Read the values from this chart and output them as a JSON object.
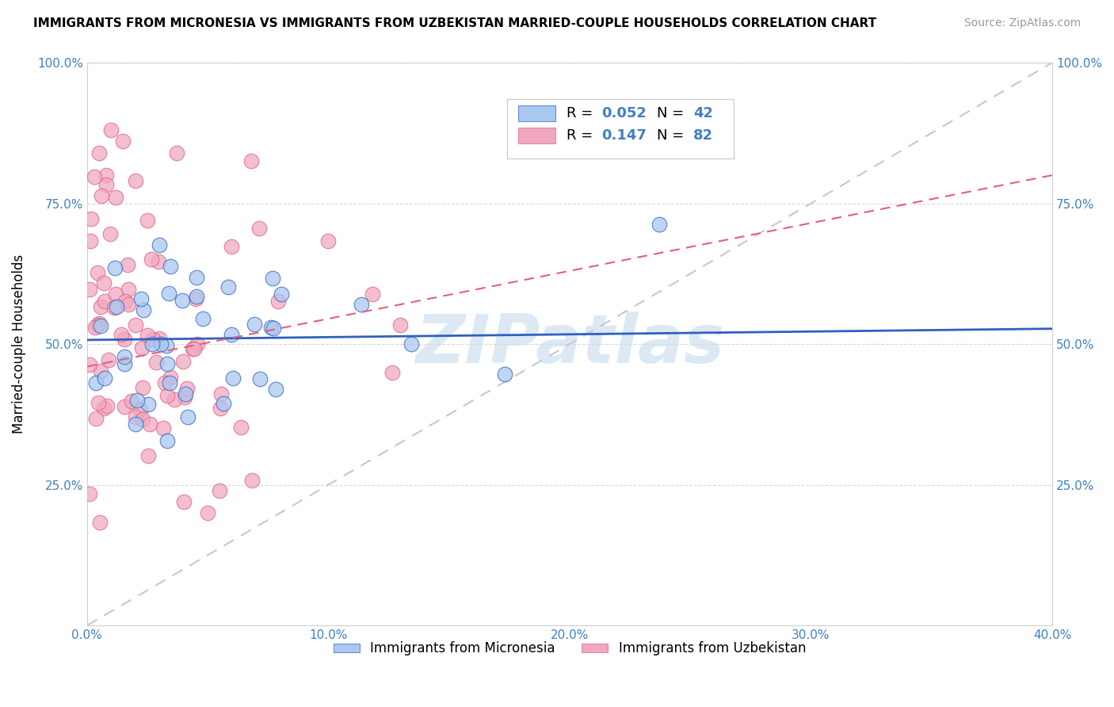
{
  "title": "IMMIGRANTS FROM MICRONESIA VS IMMIGRANTS FROM UZBEKISTAN MARRIED-COUPLE HOUSEHOLDS CORRELATION CHART",
  "source": "Source: ZipAtlas.com",
  "ylabel": "Married-couple Households",
  "xlim": [
    0.0,
    0.4
  ],
  "ylim": [
    0.0,
    1.0
  ],
  "xtick_labels": [
    "0.0%",
    "",
    "10.0%",
    "",
    "20.0%",
    "",
    "30.0%",
    "",
    "40.0%"
  ],
  "xtick_values": [
    0.0,
    0.05,
    0.1,
    0.15,
    0.2,
    0.25,
    0.3,
    0.35,
    0.4
  ],
  "ytick_labels": [
    "25.0%",
    "50.0%",
    "75.0%",
    "100.0%"
  ],
  "ytick_values": [
    0.25,
    0.5,
    0.75,
    1.0
  ],
  "color_micronesia": "#a8c8f0",
  "color_uzbekistan": "#f0a8c0",
  "color_micronesia_line": "#3060c0",
  "color_uzbekistan_line": "#e06080",
  "color_diagonal": "#c8c8c8",
  "R_micronesia": 0.052,
  "N_micronesia": 42,
  "R_uzbekistan": 0.147,
  "N_uzbekistan": 82,
  "legend_label_micronesia": "Immigrants from Micronesia",
  "legend_label_uzbekistan": "Immigrants from Uzbekistan",
  "watermark": "ZIPatlas",
  "tick_color": "#4080c0"
}
